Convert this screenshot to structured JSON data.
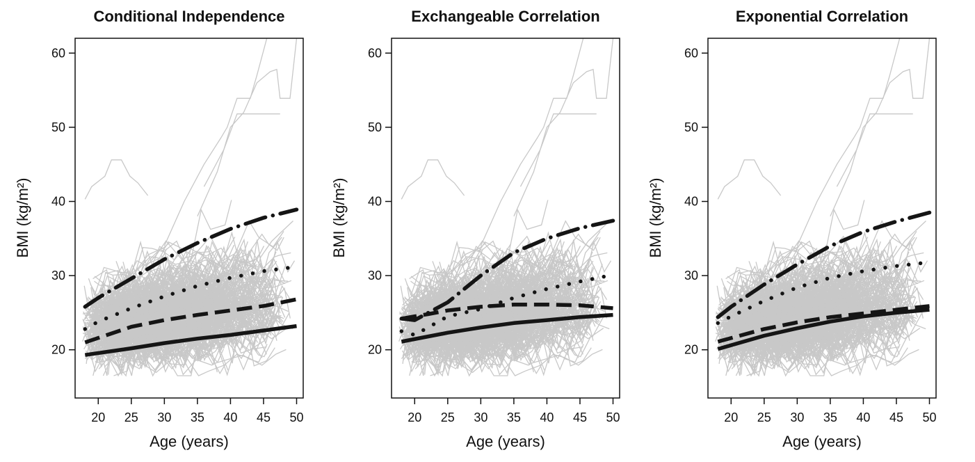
{
  "chart_data": [
    {
      "type": "line",
      "title": "Conditional Independence",
      "xlabel": "Age (years)",
      "ylabel": "BMI (kg/m²)",
      "xlim": [
        16.5,
        51
      ],
      "ylim": [
        13.5,
        62
      ],
      "xticks": [
        20,
        25,
        30,
        35,
        40,
        45,
        50
      ],
      "yticks": [
        20,
        30,
        40,
        50,
        60
      ],
      "background": "individual BMI trajectories (grey)",
      "series": [
        {
          "style": "solid",
          "x": [
            18,
            25,
            30,
            35,
            40,
            45,
            50
          ],
          "y": [
            19.3,
            20.2,
            20.9,
            21.5,
            22.0,
            22.6,
            23.2
          ]
        },
        {
          "style": "dashed",
          "x": [
            18,
            25,
            30,
            35,
            40,
            45,
            50
          ],
          "y": [
            21.0,
            23.1,
            24.0,
            24.7,
            25.3,
            25.9,
            26.8
          ]
        },
        {
          "style": "dotted",
          "x": [
            18,
            20,
            25,
            30,
            35,
            40,
            45,
            50
          ],
          "y": [
            22.8,
            23.8,
            25.6,
            27.2,
            28.6,
            29.7,
            30.6,
            31.2
          ]
        },
        {
          "style": "dash-dot",
          "x": [
            18,
            20,
            25,
            30,
            35,
            40,
            45,
            50
          ],
          "y": [
            25.8,
            27.0,
            29.6,
            32.2,
            34.4,
            36.3,
            37.8,
            38.9
          ]
        }
      ]
    },
    {
      "type": "line",
      "title": "Exchangeable Correlation",
      "xlabel": "Age (years)",
      "ylabel": "BMI (kg/m²)",
      "xlim": [
        16.5,
        51
      ],
      "ylim": [
        13.5,
        62
      ],
      "xticks": [
        20,
        25,
        30,
        35,
        40,
        45,
        50
      ],
      "yticks": [
        20,
        30,
        40,
        50,
        60
      ],
      "background": "individual BMI trajectories (grey)",
      "series": [
        {
          "style": "solid",
          "x": [
            18,
            25,
            30,
            35,
            40,
            45,
            50
          ],
          "y": [
            21.1,
            22.3,
            23.0,
            23.6,
            24.0,
            24.4,
            24.7
          ]
        },
        {
          "style": "dashed",
          "x": [
            18,
            22,
            25,
            30,
            35,
            40,
            45,
            50
          ],
          "y": [
            24.2,
            24.8,
            25.3,
            25.8,
            26.1,
            26.1,
            26.0,
            25.6
          ]
        },
        {
          "style": "dotted",
          "x": [
            18,
            20,
            25,
            30,
            35,
            40,
            45,
            50
          ],
          "y": [
            22.5,
            22.0,
            24.5,
            25.5,
            27.0,
            28.2,
            29.2,
            30.1
          ]
        },
        {
          "style": "dash-dot",
          "x": [
            18,
            20,
            25,
            30,
            35,
            40,
            45,
            50
          ],
          "y": [
            24.2,
            24.0,
            26.4,
            30.0,
            33.1,
            35.0,
            36.4,
            37.4
          ]
        }
      ]
    },
    {
      "type": "line",
      "title": "Exponential Correlation",
      "xlabel": "Age (years)",
      "ylabel": "BMI (kg/m²)",
      "xlim": [
        16.5,
        51
      ],
      "ylim": [
        13.5,
        62
      ],
      "xticks": [
        20,
        25,
        30,
        35,
        40,
        45,
        50
      ],
      "yticks": [
        20,
        30,
        40,
        50,
        60
      ],
      "background": "individual BMI trajectories (grey)",
      "series": [
        {
          "style": "solid",
          "x": [
            18,
            25,
            30,
            35,
            40,
            45,
            50
          ],
          "y": [
            20.1,
            21.9,
            22.9,
            23.8,
            24.5,
            25.0,
            25.4
          ]
        },
        {
          "style": "dashed",
          "x": [
            18,
            25,
            30,
            35,
            40,
            45,
            50
          ],
          "y": [
            21.1,
            22.8,
            23.7,
            24.4,
            24.9,
            25.4,
            25.9
          ]
        },
        {
          "style": "dotted",
          "x": [
            18,
            20,
            25,
            30,
            35,
            40,
            45,
            50
          ],
          "y": [
            23.6,
            24.5,
            26.6,
            28.4,
            29.7,
            30.6,
            31.3,
            31.8
          ]
        },
        {
          "style": "dash-dot",
          "x": [
            18,
            20,
            25,
            30,
            35,
            40,
            45,
            50
          ],
          "y": [
            24.4,
            25.8,
            28.8,
            31.5,
            34.0,
            35.9,
            37.3,
            38.5
          ]
        }
      ]
    }
  ],
  "colors": {
    "trajectories": "#c8c8c8",
    "fit_lines": "#151515",
    "axes": "#111111"
  }
}
